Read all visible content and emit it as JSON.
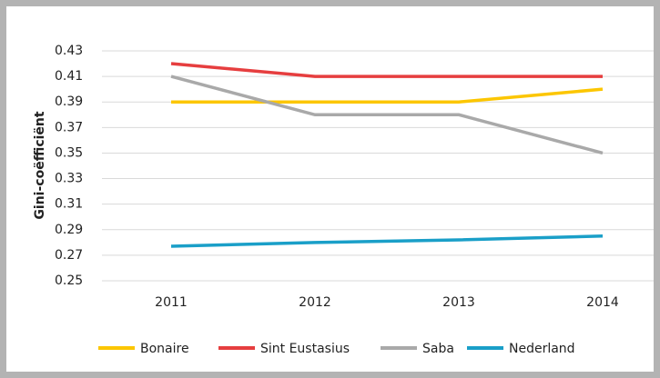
{
  "chart_data": {
    "type": "line",
    "y_label": "Gini-coëfficiënt",
    "categories": [
      "2011",
      "2012",
      "2013",
      "2014"
    ],
    "series": [
      {
        "name": "Bonaire",
        "color": "#fcc600",
        "values": [
          0.39,
          0.39,
          0.39,
          0.4
        ]
      },
      {
        "name": "Sint Eustasius",
        "color": "#e63e3f",
        "values": [
          0.42,
          0.41,
          0.41,
          0.41
        ]
      },
      {
        "name": "Saba",
        "color": "#a9a9a9",
        "values": [
          0.41,
          0.38,
          0.38,
          0.35
        ]
      },
      {
        "name": "Nederland",
        "color": "#1a9fc8",
        "values": [
          0.277,
          0.28,
          0.282,
          0.285
        ]
      }
    ],
    "ylim": [
      0.25,
      0.43
    ],
    "yticks": [
      0.25,
      0.27,
      0.29,
      0.31,
      0.33,
      0.35,
      0.37,
      0.39,
      0.41,
      0.43
    ],
    "grid": true,
    "legend": "bottom"
  }
}
